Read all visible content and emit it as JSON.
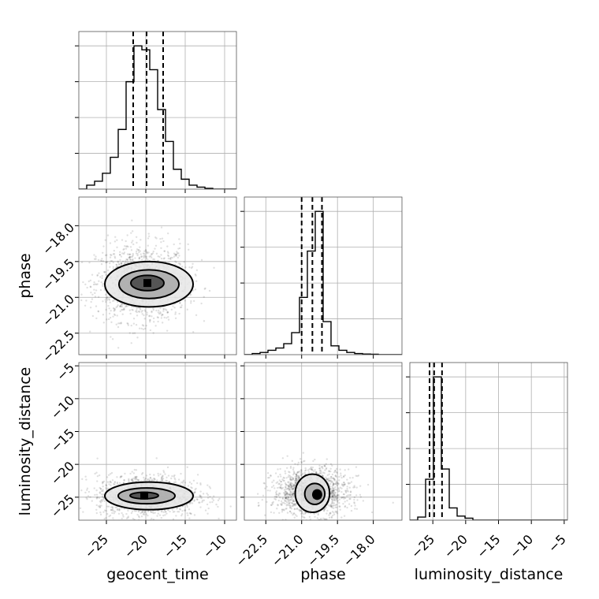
{
  "chart_data": {
    "type": "corner",
    "parameters": [
      "geocent_time",
      "phase",
      "luminosity_distance"
    ],
    "axis_labels": {
      "x": [
        "geocent_time",
        "phase",
        "luminosity_distance"
      ],
      "y": [
        "",
        "phase",
        "luminosity_distance"
      ]
    },
    "ranges": {
      "geocent_time": [
        -28.5,
        -8.5
      ],
      "phase": [
        -23.4,
        -16.8
      ],
      "luminosity_distance": [
        -28.5,
        -4.5
      ]
    },
    "ticks": {
      "geocent_time": {
        "values": [
          -25,
          -20,
          -15,
          -10
        ],
        "labels": [
          "−25",
          "−20",
          "−15",
          "−10"
        ]
      },
      "phase": {
        "values": [
          -22.5,
          -21.0,
          -19.5,
          -18.0
        ],
        "labels": [
          "−22.5",
          "−21.0",
          "−19.5",
          "−18.0"
        ]
      },
      "luminosity_distance": {
        "values": [
          -25,
          -20,
          -15,
          -10,
          -5
        ],
        "labels": [
          "−25",
          "−20",
          "−15",
          "−10",
          "−5"
        ]
      }
    },
    "histograms": {
      "geocent_time": {
        "bin_edges": [
          -28.5,
          -27.5,
          -26.5,
          -25.5,
          -24.5,
          -23.5,
          -22.5,
          -21.5,
          -20.5,
          -19.5,
          -18.5,
          -17.5,
          -16.5,
          -15.5,
          -14.5,
          -13.5,
          -12.5,
          -11.5,
          -10.5,
          -9.5,
          -8.5
        ],
        "counts": [
          0,
          1,
          2,
          4,
          8,
          15,
          27,
          36,
          35,
          30,
          20,
          12,
          5,
          2.5,
          1,
          0.5,
          0.2,
          0,
          0,
          0
        ],
        "quantiles": [
          -21.6,
          -19.9,
          -17.8
        ]
      },
      "phase": {
        "bin_edges": [
          -23.4,
          -23.07,
          -22.74,
          -22.41,
          -22.08,
          -21.75,
          -21.42,
          -21.09,
          -20.76,
          -20.43,
          -20.1,
          -19.77,
          -19.44,
          -19.11,
          -18.78,
          -18.45,
          -18.12,
          -17.79,
          -17.46,
          -17.13,
          -16.8
        ],
        "counts": [
          0,
          0.5,
          1,
          2,
          3,
          5,
          10,
          26,
          47,
          65,
          15,
          4,
          2,
          1,
          0.5,
          0.3,
          0.2,
          0,
          0,
          0
        ],
        "quantiles": [
          -21.0,
          -20.55,
          -20.15
        ]
      },
      "luminosity_distance": {
        "bin_edges": [
          -28.5,
          -27.3,
          -26.1,
          -24.9,
          -23.7,
          -22.5,
          -21.3,
          -20.1,
          -18.9,
          -17.7,
          -16.5,
          -15.3,
          -14.1,
          -12.9,
          -11.7,
          -10.5,
          -9.3,
          -8.1,
          -6.9,
          -5.7,
          -4.5
        ],
        "counts": [
          0,
          1.5,
          20,
          70,
          25,
          6,
          2,
          1,
          0,
          0,
          0,
          0,
          0,
          0,
          0,
          0,
          0,
          0,
          0,
          0
        ],
        "quantiles": [
          -25.5,
          -24.8,
          -23.6
        ]
      }
    },
    "pairs": [
      {
        "x_param": "geocent_time",
        "y_param": "phase",
        "center": [
          -20.5,
          -20.4
        ],
        "spread": [
          2.9,
          0.8
        ],
        "contours": [
          {
            "cx": -19.6,
            "cy": -20.45,
            "rx": 5.6,
            "ry": 0.95
          },
          {
            "cx": -19.6,
            "cy": -20.45,
            "rx": 3.8,
            "ry": 0.6
          },
          {
            "cx": -19.8,
            "cy": -20.4,
            "rx": 2.1,
            "ry": 0.32
          }
        ]
      },
      {
        "x_param": "geocent_time",
        "y_param": "luminosity_distance",
        "center": [
          -19.8,
          -24.8
        ],
        "spread": [
          3.2,
          1.6
        ],
        "contours": [
          {
            "cx": -19.6,
            "cy": -24.8,
            "rx": 5.6,
            "ry": 2.1
          },
          {
            "cx": -19.9,
            "cy": -24.8,
            "rx": 3.6,
            "ry": 1.2
          },
          {
            "cx": -20.2,
            "cy": -24.75,
            "rx": 1.8,
            "ry": 0.5
          }
        ]
      },
      {
        "x_param": "phase",
        "y_param": "luminosity_distance",
        "center": [
          -20.6,
          -24.2
        ],
        "spread": [
          0.8,
          1.8
        ],
        "contours": [
          {
            "cx": -20.55,
            "cy": -24.4,
            "rx": 0.72,
            "ry": 2.9
          },
          {
            "cx": -20.45,
            "cy": -24.5,
            "rx": 0.42,
            "ry": 1.6
          },
          {
            "cx": -20.35,
            "cy": -24.6,
            "rx": 0.18,
            "ry": 0.7
          }
        ]
      }
    ],
    "grid": true,
    "legend": "none",
    "colors": {
      "line": "#000000",
      "points": "#000000",
      "grid": "#b0b0b0"
    }
  }
}
